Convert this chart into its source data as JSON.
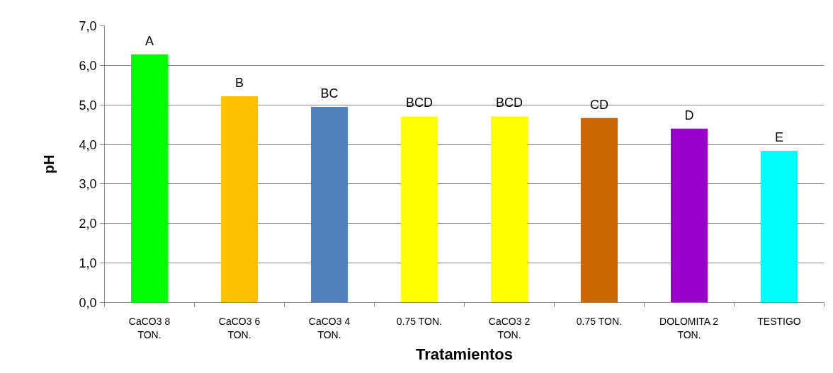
{
  "chart_data": {
    "type": "bar",
    "xlabel": "Tratamientos",
    "ylabel": "pH",
    "categories": [
      "CaCO3 8 TON.",
      "CaCO3 6 TON.",
      "CaCO3 4 TON.",
      "0.75 TON.",
      "CaCO3 2 TON.",
      "0.75 TON.",
      "DOLOMITA 2 TON.",
      "TESTIGO"
    ],
    "values": [
      6.28,
      5.22,
      4.95,
      4.71,
      4.71,
      4.67,
      4.4,
      3.84
    ],
    "colors": [
      "#00ff00",
      "#ffc000",
      "#4f81bd",
      "#ffff00",
      "#ffff00",
      "#cc6600",
      "#9900cc",
      "#00ffff"
    ],
    "value_labels": [
      "A",
      "B",
      "BC",
      "BCD",
      "BCD",
      "CD",
      "D",
      "E"
    ],
    "ylim": [
      0,
      7
    ],
    "yticks": [
      {
        "value": 0,
        "label": "0,0"
      },
      {
        "value": 1,
        "label": "1,0"
      },
      {
        "value": 2,
        "label": "2,0"
      },
      {
        "value": 3,
        "label": "3,0"
      },
      {
        "value": 4,
        "label": "4,0"
      },
      {
        "value": 5,
        "label": "5,0"
      },
      {
        "value": 6,
        "label": "6,0"
      },
      {
        "value": 7,
        "label": "7,0"
      }
    ],
    "grid": "y"
  }
}
